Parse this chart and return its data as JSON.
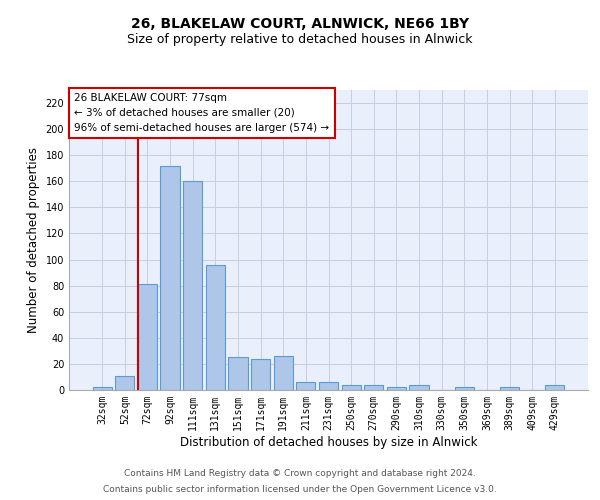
{
  "title": "26, BLAKELAW COURT, ALNWICK, NE66 1BY",
  "subtitle": "Size of property relative to detached houses in Alnwick",
  "xlabel": "Distribution of detached houses by size in Alnwick",
  "ylabel": "Number of detached properties",
  "categories": [
    "32sqm",
    "52sqm",
    "72sqm",
    "92sqm",
    "111sqm",
    "131sqm",
    "151sqm",
    "171sqm",
    "191sqm",
    "211sqm",
    "231sqm",
    "250sqm",
    "270sqm",
    "290sqm",
    "310sqm",
    "330sqm",
    "350sqm",
    "369sqm",
    "389sqm",
    "409sqm",
    "429sqm"
  ],
  "values": [
    2,
    11,
    81,
    172,
    160,
    96,
    25,
    24,
    26,
    6,
    6,
    4,
    4,
    2,
    4,
    0,
    2,
    0,
    2,
    0,
    4
  ],
  "bar_color": "#aec6e8",
  "bar_edge_color": "#5b9bd5",
  "vline_color": "#cc0000",
  "annotation_text": "26 BLAKELAW COURT: 77sqm\n← 3% of detached houses are smaller (20)\n96% of semi-detached houses are larger (574) →",
  "annotation_box_color": "#ffffff",
  "annotation_box_edge": "#cc0000",
  "ylim": [
    0,
    230
  ],
  "yticks": [
    0,
    20,
    40,
    60,
    80,
    100,
    120,
    140,
    160,
    180,
    200,
    220
  ],
  "footer_line1": "Contains HM Land Registry data © Crown copyright and database right 2024.",
  "footer_line2": "Contains public sector information licensed under the Open Government Licence v3.0.",
  "plot_bg_color": "#eaf0fb",
  "title_fontsize": 10,
  "subtitle_fontsize": 9,
  "tick_fontsize": 7,
  "ylabel_fontsize": 8.5,
  "xlabel_fontsize": 8.5,
  "footer_fontsize": 6.5
}
